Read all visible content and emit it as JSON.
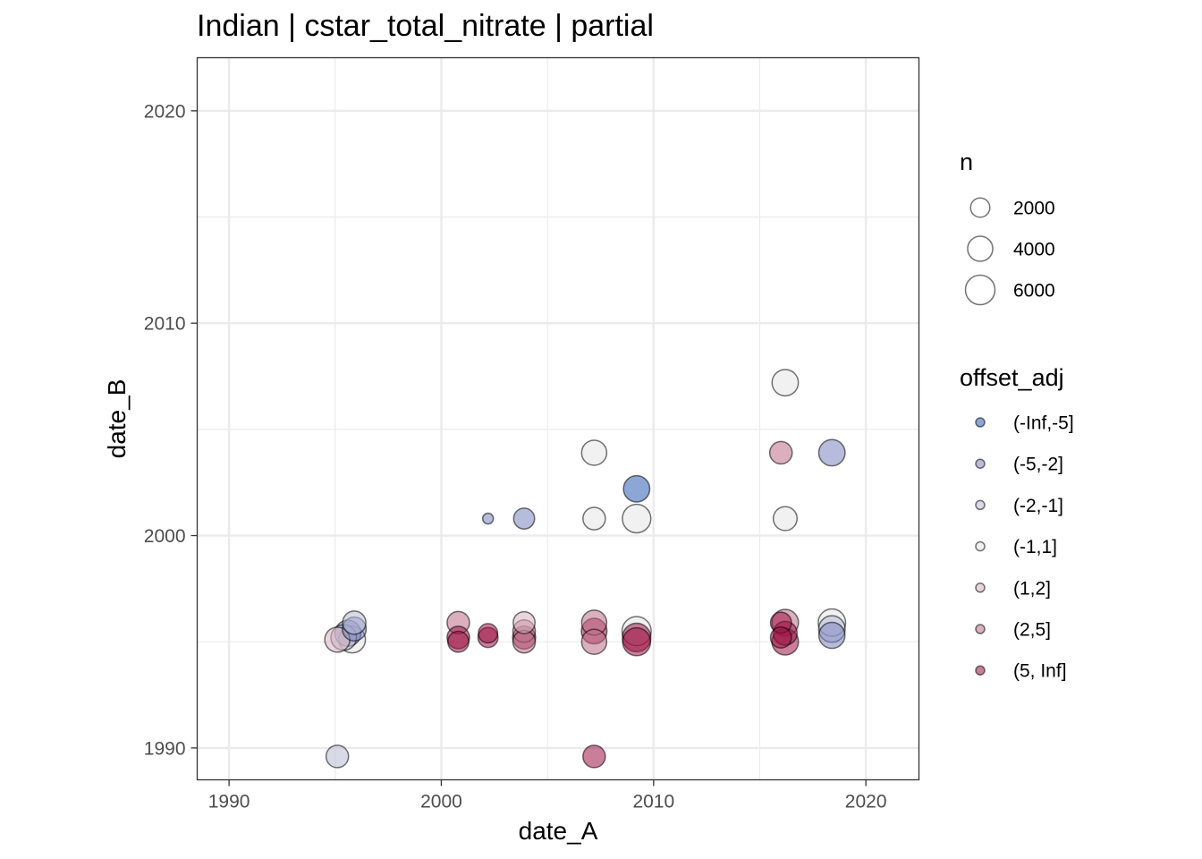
{
  "chart_data": {
    "type": "scatter",
    "title": "Indian | cstar_total_nitrate | partial",
    "xlabel": "date_A",
    "ylabel": "date_B",
    "xlim": [
      1988.5,
      2022.5
    ],
    "ylim": [
      1988.5,
      2022.5
    ],
    "x_ticks": [
      1990,
      2000,
      2010,
      2020
    ],
    "y_ticks": [
      1990,
      2000,
      2010,
      2020
    ],
    "x_tick_labels": [
      "1990",
      "2000",
      "2010",
      "2020"
    ],
    "y_tick_labels": [
      "1990",
      "2000",
      "2010",
      "2020"
    ],
    "grid": true,
    "legend_position": "right",
    "size_legend": {
      "title": "n",
      "entries": [
        {
          "label": "2000",
          "value": 2000
        },
        {
          "label": "4000",
          "value": 4000
        },
        {
          "label": "6000",
          "value": 6000
        }
      ]
    },
    "color_legend": {
      "title": "offset_adj",
      "entries": [
        {
          "label": "(-Inf,-5]",
          "color": "#2D5EB3"
        },
        {
          "label": "(-5,-2]",
          "color": "#7C85BF"
        },
        {
          "label": "(-2,-1]",
          "color": "#B9BBD6"
        },
        {
          "label": "(-1,1]",
          "color": "#E6E6E6"
        },
        {
          "label": "(1,2]",
          "color": "#D7B2BE"
        },
        {
          "label": "(2,5]",
          "color": "#BE6E89"
        },
        {
          "label": "(5, Inf]",
          "color": "#9E1446"
        }
      ]
    },
    "points": [
      {
        "x": 1995.1,
        "y": 1989.6,
        "n": 3000,
        "group": "(-2,-1]"
      },
      {
        "x": 1995.1,
        "y": 1995.1,
        "n": 4000,
        "group": "(1,2]"
      },
      {
        "x": 1995.4,
        "y": 1995.2,
        "n": 4200,
        "group": "(-2,-1]"
      },
      {
        "x": 1995.6,
        "y": 1995.4,
        "n": 4400,
        "group": "(-5,-2]"
      },
      {
        "x": 1995.8,
        "y": 1995.1,
        "n": 4600,
        "group": "(-1,1]"
      },
      {
        "x": 1995.9,
        "y": 1995.6,
        "n": 3500,
        "group": "(-5,-2]"
      },
      {
        "x": 1995.9,
        "y": 1995.9,
        "n": 3300,
        "group": "(-2,-1]"
      },
      {
        "x": 2000.8,
        "y": 1995.9,
        "n": 3000,
        "group": "(2,5]"
      },
      {
        "x": 2000.8,
        "y": 1995.2,
        "n": 3000,
        "group": "(5, Inf]"
      },
      {
        "x": 2000.8,
        "y": 1995.0,
        "n": 2500,
        "group": "(5, Inf]"
      },
      {
        "x": 2002.2,
        "y": 1995.4,
        "n": 2000,
        "group": "(5, Inf]"
      },
      {
        "x": 2002.2,
        "y": 1995.2,
        "n": 2200,
        "group": "(5, Inf]"
      },
      {
        "x": 2002.2,
        "y": 2000.8,
        "n": 300,
        "group": "(-5,-2]"
      },
      {
        "x": 2003.9,
        "y": 1995.9,
        "n": 2800,
        "group": "(1,2]"
      },
      {
        "x": 2003.9,
        "y": 1995.5,
        "n": 3000,
        "group": "(2,5]"
      },
      {
        "x": 2003.9,
        "y": 1995.2,
        "n": 3200,
        "group": "(5, Inf]"
      },
      {
        "x": 2003.9,
        "y": 1995.0,
        "n": 3000,
        "group": "(2,5]"
      },
      {
        "x": 2003.9,
        "y": 2000.8,
        "n": 2500,
        "group": "(-5,-2]"
      },
      {
        "x": 2007.2,
        "y": 1995.9,
        "n": 4000,
        "group": "(2,5]"
      },
      {
        "x": 2007.2,
        "y": 1995.5,
        "n": 4200,
        "group": "(5, Inf]"
      },
      {
        "x": 2007.2,
        "y": 1995.0,
        "n": 4000,
        "group": "(2,5]"
      },
      {
        "x": 2007.2,
        "y": 1989.6,
        "n": 3000,
        "group": "(5, Inf]"
      },
      {
        "x": 2007.2,
        "y": 2000.8,
        "n": 3000,
        "group": "(-1,1]"
      },
      {
        "x": 2007.2,
        "y": 2003.9,
        "n": 4000,
        "group": "(-1,1]"
      },
      {
        "x": 2009.2,
        "y": 1995.5,
        "n": 5800,
        "group": "(-1,1]"
      },
      {
        "x": 2009.2,
        "y": 1995.2,
        "n": 5500,
        "group": "(5, Inf]"
      },
      {
        "x": 2009.2,
        "y": 1995.0,
        "n": 5200,
        "group": "(5, Inf]"
      },
      {
        "x": 2009.2,
        "y": 2000.8,
        "n": 5500,
        "group": "(-1,1]"
      },
      {
        "x": 2009.2,
        "y": 2002.2,
        "n": 4500,
        "group": "(-Inf,-5]"
      },
      {
        "x": 2016.0,
        "y": 1995.9,
        "n": 2500,
        "group": "(5, Inf]"
      },
      {
        "x": 2016.2,
        "y": 1995.9,
        "n": 4600,
        "group": "(2,5]"
      },
      {
        "x": 2016.2,
        "y": 1995.4,
        "n": 3500,
        "group": "(5, Inf]"
      },
      {
        "x": 2016.2,
        "y": 1995.0,
        "n": 4600,
        "group": "(5, Inf]"
      },
      {
        "x": 2016.0,
        "y": 1995.2,
        "n": 2500,
        "group": "(5, Inf]"
      },
      {
        "x": 2016.0,
        "y": 2003.9,
        "n": 3000,
        "group": "(2,5]"
      },
      {
        "x": 2016.2,
        "y": 2000.8,
        "n": 3500,
        "group": "(-1,1]"
      },
      {
        "x": 2016.2,
        "y": 2007.2,
        "n": 4500,
        "group": "(-1,1]"
      },
      {
        "x": 2018.4,
        "y": 1995.9,
        "n": 5000,
        "group": "(-1,1]"
      },
      {
        "x": 2018.4,
        "y": 1995.6,
        "n": 4600,
        "group": "(-2,-1]"
      },
      {
        "x": 2018.4,
        "y": 1995.3,
        "n": 4400,
        "group": "(-5,-2]"
      },
      {
        "x": 2018.4,
        "y": 2003.9,
        "n": 4500,
        "group": "(-5,-2]"
      }
    ]
  }
}
